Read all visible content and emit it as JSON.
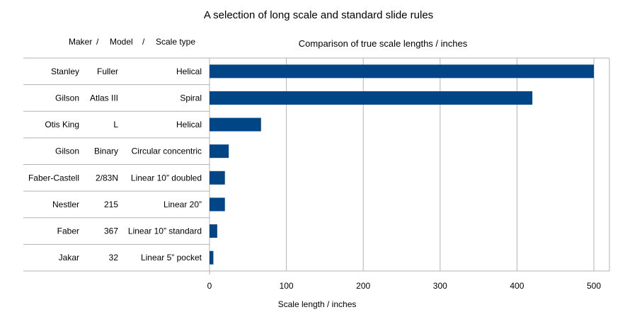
{
  "chart_data": {
    "type": "bar",
    "orientation": "horizontal",
    "title": "A selection of long scale and standard slide rules",
    "subtitle": "Comparison of true scale lengths / inches",
    "xlabel": "Scale length / inches",
    "table_headers": [
      "Maker",
      "/",
      "Model",
      "/",
      "Scale type"
    ],
    "rows": [
      {
        "maker": "Stanley",
        "model": "Fuller",
        "scale_type": "Helical",
        "value": 500
      },
      {
        "maker": "Gilson",
        "model": "Atlas III",
        "scale_type": "Spiral",
        "value": 420
      },
      {
        "maker": "Otis King",
        "model": "L",
        "scale_type": "Helical",
        "value": 67
      },
      {
        "maker": "Gilson",
        "model": "Binary",
        "scale_type": "Circular concentric",
        "value": 25
      },
      {
        "maker": "Faber-Castell",
        "model": "2/83N",
        "scale_type": "Linear 10” doubled",
        "value": 20
      },
      {
        "maker": "Nestler",
        "model": "215",
        "scale_type": "Linear 20”",
        "value": 20
      },
      {
        "maker": "Faber",
        "model": "367",
        "scale_type": "Linear 10” standard",
        "value": 10
      },
      {
        "maker": "Jakar",
        "model": "32",
        "scale_type": "Linear 5” pocket",
        "value": 5
      }
    ],
    "x_ticks": [
      0,
      100,
      200,
      300,
      400,
      500
    ],
    "xlim": [
      0,
      500
    ],
    "grid": true,
    "bar_color": "#004586"
  }
}
